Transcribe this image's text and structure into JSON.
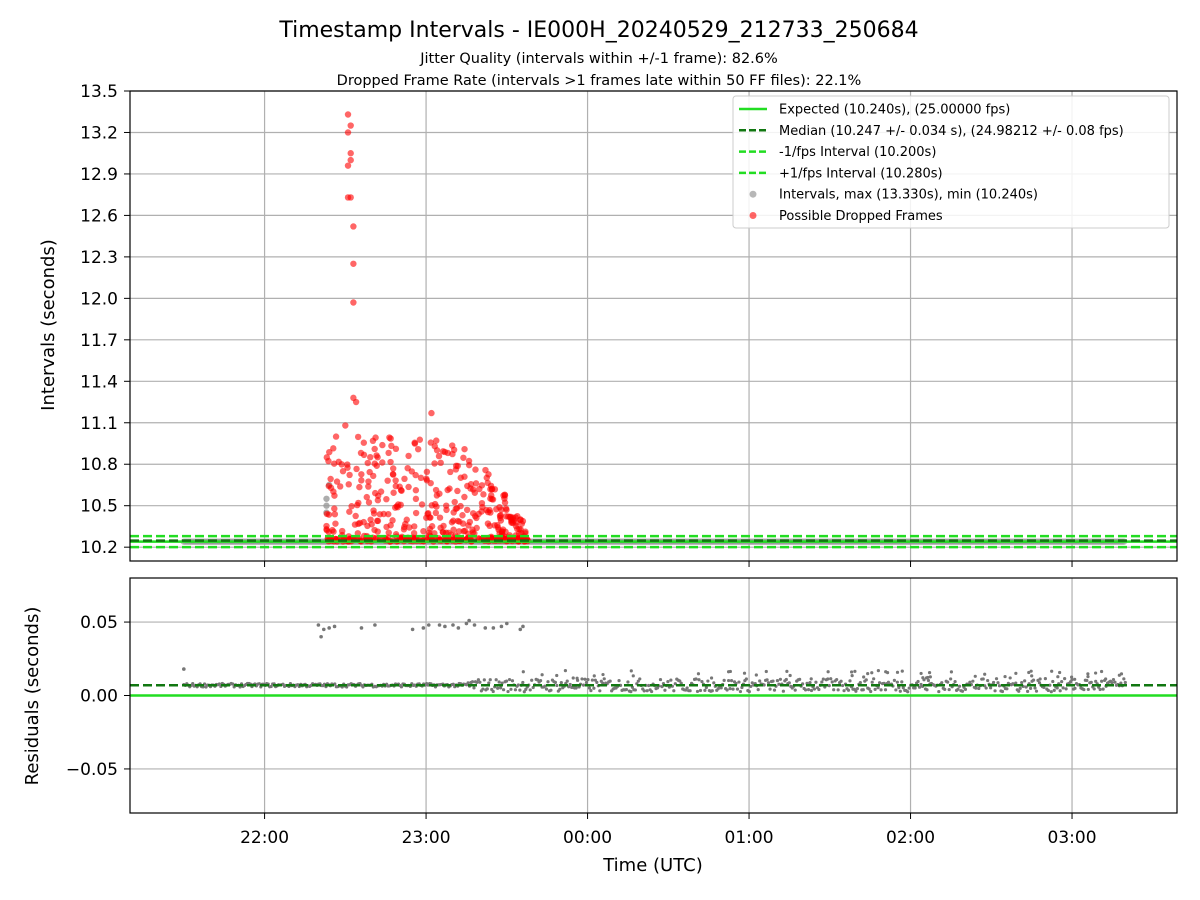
{
  "chart_data": [
    {
      "type": "scatter",
      "title": "Timestamp Intervals - IE000H_20240529_212733_250684",
      "subtitle_1": "Jitter Quality (intervals within +/-1 frame): 82.6%",
      "subtitle_2": "Dropped Frame Rate (intervals >1 frames late within 50 FF files): 22.1%",
      "ylabel": "Intervals (seconds)",
      "xlabel": "",
      "ylim": [
        10.1,
        13.5
      ],
      "xlim": [
        "21:10",
        "03:39"
      ],
      "y_ticks": [
        "10.2",
        "10.5",
        "10.8",
        "11.1",
        "11.4",
        "11.7",
        "12.0",
        "12.3",
        "12.6",
        "12.9",
        "13.2",
        "13.5"
      ],
      "x_ticks": [
        "22:00",
        "23:00",
        "00:00",
        "01:00",
        "02:00",
        "03:00"
      ],
      "grid": true,
      "legend_position": "top-right",
      "reference_lines": [
        {
          "name": "Expected (10.240s), (25.00000 fps)",
          "y": 10.24,
          "style": "solid",
          "color": "#22dd22"
        },
        {
          "name": "Median (10.247 +/- 0.034 s), (24.98212 +/- 0.08 fps)",
          "y": 10.247,
          "style": "dashed",
          "color": "#117711"
        },
        {
          "name": "-1/fps Interval (10.200s)",
          "y": 10.2,
          "style": "dashed",
          "color": "#22dd22"
        },
        {
          "name": "+1/fps Interval (10.280s)",
          "y": 10.28,
          "style": "dashed",
          "color": "#22dd22"
        }
      ],
      "series": [
        {
          "name": "Intervals, max (13.330s), min (10.240s)",
          "color": "#999999",
          "x_range": [
            "21:30",
            "03:20"
          ],
          "y": 10.24,
          "extra_points": [
            [
              "22:23",
              10.45
            ],
            [
              "22:23",
              10.55
            ],
            [
              "22:24",
              10.65
            ],
            [
              "22:23",
              10.5
            ]
          ]
        },
        {
          "name": "Possible Dropped Frames",
          "color": "#ff0000",
          "x_range": [
            "22:23",
            "23:38"
          ],
          "y_range": [
            10.24,
            11.17
          ],
          "spike_points": [
            [
              "22:31",
              13.33
            ],
            [
              "22:32",
              13.25
            ],
            [
              "22:31",
              13.2
            ],
            [
              "22:32",
              13.05
            ],
            [
              "22:32",
              13.0
            ],
            [
              "22:31",
              12.96
            ],
            [
              "22:31",
              12.73
            ],
            [
              "22:32",
              12.73
            ],
            [
              "22:33",
              12.52
            ],
            [
              "22:33",
              12.25
            ],
            [
              "22:33",
              11.97
            ],
            [
              "22:33",
              11.28
            ],
            [
              "22:34",
              11.25
            ],
            [
              "22:30",
              11.08
            ],
            [
              "23:02",
              11.17
            ]
          ]
        }
      ]
    },
    {
      "type": "scatter",
      "xlabel": "Time (UTC)",
      "ylabel": "Residuals (seconds)",
      "ylim": [
        -0.08,
        0.08
      ],
      "y_ticks": [
        "0.05",
        "0.00",
        "−0.05"
      ],
      "x_ticks": [
        "22:00",
        "23:00",
        "00:00",
        "01:00",
        "02:00",
        "03:00"
      ],
      "grid": true,
      "reference_lines": [
        {
          "y": 0.0,
          "style": "solid",
          "color": "#22dd22"
        },
        {
          "y": 0.007,
          "style": "dashed",
          "color": "#117711"
        }
      ],
      "series": [
        {
          "color": "#777777",
          "x_range": [
            "21:30",
            "03:20"
          ],
          "y_center": 0.007,
          "outlier_points": [
            [
              "21:30",
              0.018
            ],
            [
              "22:20",
              0.048
            ],
            [
              "22:21",
              0.04
            ],
            [
              "22:22",
              0.045
            ],
            [
              "22:24",
              0.046
            ],
            [
              "22:26",
              0.047
            ],
            [
              "22:36",
              0.046
            ],
            [
              "22:41",
              0.048
            ],
            [
              "22:55",
              0.045
            ],
            [
              "22:59",
              0.046
            ],
            [
              "23:01",
              0.048
            ],
            [
              "23:05",
              0.048
            ],
            [
              "23:07",
              0.047
            ],
            [
              "23:10",
              0.048
            ],
            [
              "23:12",
              0.046
            ],
            [
              "23:15",
              0.049
            ],
            [
              "23:16",
              0.051
            ],
            [
              "23:18",
              0.048
            ],
            [
              "23:22",
              0.046
            ],
            [
              "23:25",
              0.046
            ],
            [
              "23:28",
              0.047
            ],
            [
              "23:30",
              0.049
            ],
            [
              "23:35",
              0.045
            ],
            [
              "23:36",
              0.047
            ]
          ]
        }
      ]
    }
  ]
}
